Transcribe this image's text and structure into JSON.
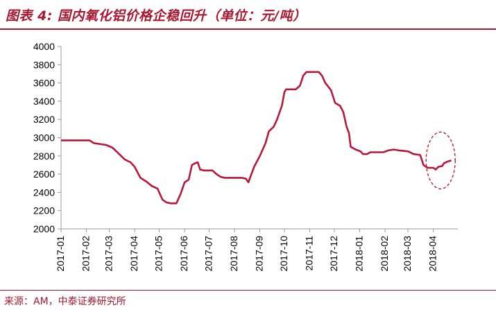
{
  "header": {
    "title": "图表 4:  国内氧化铝价格企稳回升（单位：元/吨）"
  },
  "footer": {
    "source": "来源：AM，中泰证券研究所"
  },
  "colors": {
    "accent": "#a8172e",
    "series": "#b8173a",
    "annotation": "#c0172e"
  },
  "chart_data": {
    "type": "line",
    "title": "",
    "xlabel": "",
    "ylabel": "",
    "ylim": [
      2000,
      4000
    ],
    "yticks": [
      2000,
      2200,
      2400,
      2600,
      2800,
      3000,
      3200,
      3400,
      3600,
      3800,
      4000
    ],
    "xticks": [
      "2017-01",
      "2017-02",
      "2017-03",
      "2017-04",
      "2017-05",
      "2017-06",
      "2017-07",
      "2017-08",
      "2017-09",
      "2017-10",
      "2017-11",
      "2017-12",
      "2018-01",
      "2018-02",
      "2018-03",
      "2018-04"
    ],
    "grid": false,
    "legend": "none",
    "annotation": "dashed ellipse around latest values (Apr 2018)",
    "series": [
      {
        "points": [
          [
            "2017-01",
            2970
          ],
          [
            "2017-01-15",
            2970
          ],
          [
            "2017-02-05",
            2970
          ],
          [
            "2017-02-10",
            2940
          ],
          [
            "2017-02-25",
            2920
          ],
          [
            "2017-03-05",
            2890
          ],
          [
            "2017-03-12",
            2830
          ],
          [
            "2017-03-20",
            2760
          ],
          [
            "2017-03-27",
            2730
          ],
          [
            "2017-04-01",
            2680
          ],
          [
            "2017-04-08",
            2560
          ],
          [
            "2017-04-15",
            2520
          ],
          [
            "2017-04-22",
            2470
          ],
          [
            "2017-04-29",
            2440
          ],
          [
            "2017-05-05",
            2320
          ],
          [
            "2017-05-10",
            2290
          ],
          [
            "2017-05-15",
            2280
          ],
          [
            "2017-05-22",
            2280
          ],
          [
            "2017-05-27",
            2380
          ],
          [
            "2017-06-01",
            2510
          ],
          [
            "2017-06-06",
            2540
          ],
          [
            "2017-06-10",
            2700
          ],
          [
            "2017-06-14",
            2720
          ],
          [
            "2017-06-17",
            2730
          ],
          [
            "2017-06-20",
            2650
          ],
          [
            "2017-06-25",
            2640
          ],
          [
            "2017-07-05",
            2640
          ],
          [
            "2017-07-10",
            2600
          ],
          [
            "2017-07-15",
            2570
          ],
          [
            "2017-07-20",
            2560
          ],
          [
            "2017-08-10",
            2560
          ],
          [
            "2017-08-15",
            2550
          ],
          [
            "2017-08-18",
            2510
          ],
          [
            "2017-08-20",
            2560
          ],
          [
            "2017-08-25",
            2680
          ],
          [
            "2017-09-01",
            2800
          ],
          [
            "2017-09-08",
            2940
          ],
          [
            "2017-09-12",
            3070
          ],
          [
            "2017-09-18",
            3120
          ],
          [
            "2017-09-22",
            3200
          ],
          [
            "2017-09-28",
            3350
          ],
          [
            "2017-10-01",
            3500
          ],
          [
            "2017-10-03",
            3530
          ],
          [
            "2017-10-15",
            3530
          ],
          [
            "2017-10-20",
            3570
          ],
          [
            "2017-10-24",
            3680
          ],
          [
            "2017-10-28",
            3720
          ],
          [
            "2017-11-05",
            3720
          ],
          [
            "2017-11-12",
            3720
          ],
          [
            "2017-11-16",
            3680
          ],
          [
            "2017-11-20",
            3600
          ],
          [
            "2017-11-27",
            3520
          ],
          [
            "2017-12-02",
            3380
          ],
          [
            "2017-12-08",
            3350
          ],
          [
            "2017-12-12",
            3280
          ],
          [
            "2017-12-16",
            3120
          ],
          [
            "2017-12-19",
            3050
          ],
          [
            "2017-12-21",
            2900
          ],
          [
            "2017-12-27",
            2870
          ],
          [
            "2018-01-02",
            2850
          ],
          [
            "2018-01-05",
            2820
          ],
          [
            "2018-01-10",
            2820
          ],
          [
            "2018-01-14",
            2840
          ],
          [
            "2018-01-30",
            2840
          ],
          [
            "2018-02-05",
            2860
          ],
          [
            "2018-02-12",
            2870
          ],
          [
            "2018-02-18",
            2860
          ],
          [
            "2018-03-01",
            2850
          ],
          [
            "2018-03-08",
            2820
          ],
          [
            "2018-03-16",
            2810
          ],
          [
            "2018-03-20",
            2700
          ],
          [
            "2018-03-25",
            2670
          ],
          [
            "2018-04-01",
            2670
          ],
          [
            "2018-04-04",
            2650
          ],
          [
            "2018-04-07",
            2680
          ],
          [
            "2018-04-12",
            2690
          ],
          [
            "2018-04-14",
            2720
          ],
          [
            "2018-04-19",
            2740
          ],
          [
            "2018-04-23",
            2750
          ]
        ]
      }
    ]
  }
}
